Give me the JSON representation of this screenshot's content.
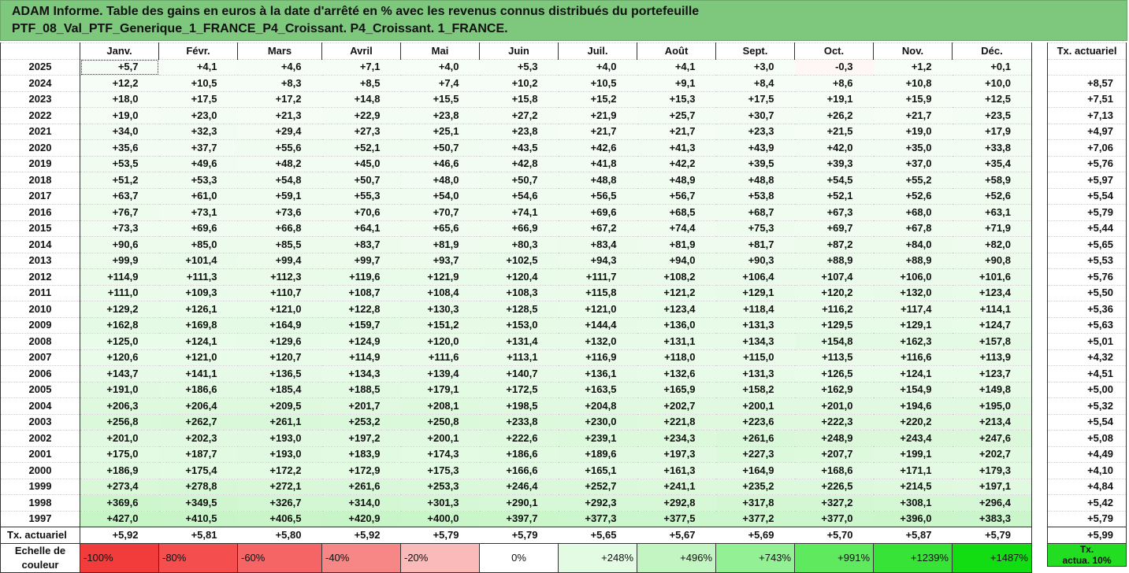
{
  "title": {
    "line1": "ADAM Informe. Table des gains en euros à la date d'arrêté en % avec les revenus connus distribués du portefeuille",
    "line2": "PTF_08_Val_PTF_Generique_1_FRANCE_P4_Croissant. P4_Croissant. 1_FRANCE."
  },
  "months": [
    "Janv.",
    "Févr.",
    "Mars",
    "Avril",
    "Mai",
    "Juin",
    "Juil.",
    "Août",
    "Sept.",
    "Oct.",
    "Nov.",
    "Déc."
  ],
  "rate_header": "Tx. actuariel",
  "rows": [
    {
      "year": "2025",
      "values": [
        "+5,7",
        "+4,1",
        "+4,6",
        "+7,1",
        "+4,0",
        "+5,3",
        "+4,0",
        "+4,1",
        "+3,0",
        "-0,3",
        "+1,2",
        "+0,1"
      ],
      "rate": ""
    },
    {
      "year": "2024",
      "values": [
        "+12,2",
        "+10,5",
        "+8,3",
        "+8,5",
        "+7,4",
        "+10,2",
        "+10,5",
        "+9,1",
        "+8,4",
        "+8,6",
        "+10,8",
        "+10,0"
      ],
      "rate": "+8,57"
    },
    {
      "year": "2023",
      "values": [
        "+18,0",
        "+17,5",
        "+17,2",
        "+14,8",
        "+15,5",
        "+15,8",
        "+15,2",
        "+15,3",
        "+17,5",
        "+19,1",
        "+15,9",
        "+12,5"
      ],
      "rate": "+7,51"
    },
    {
      "year": "2022",
      "values": [
        "+19,0",
        "+23,0",
        "+21,3",
        "+22,9",
        "+23,8",
        "+27,2",
        "+21,9",
        "+25,7",
        "+30,7",
        "+26,2",
        "+21,7",
        "+23,5"
      ],
      "rate": "+7,13"
    },
    {
      "year": "2021",
      "values": [
        "+34,0",
        "+32,3",
        "+29,4",
        "+27,3",
        "+25,1",
        "+23,8",
        "+21,7",
        "+21,7",
        "+23,3",
        "+21,5",
        "+19,0",
        "+17,9"
      ],
      "rate": "+4,97"
    },
    {
      "year": "2020",
      "values": [
        "+35,6",
        "+37,7",
        "+55,6",
        "+52,1",
        "+50,7",
        "+43,5",
        "+42,6",
        "+41,3",
        "+43,9",
        "+42,0",
        "+35,0",
        "+33,8"
      ],
      "rate": "+7,06"
    },
    {
      "year": "2019",
      "values": [
        "+53,5",
        "+49,6",
        "+48,2",
        "+45,0",
        "+46,6",
        "+42,8",
        "+41,8",
        "+42,2",
        "+39,5",
        "+39,3",
        "+37,0",
        "+35,4"
      ],
      "rate": "+5,76"
    },
    {
      "year": "2018",
      "values": [
        "+51,2",
        "+53,3",
        "+54,8",
        "+50,7",
        "+48,0",
        "+50,7",
        "+48,8",
        "+48,9",
        "+48,8",
        "+54,5",
        "+55,2",
        "+58,9"
      ],
      "rate": "+5,97"
    },
    {
      "year": "2017",
      "values": [
        "+63,7",
        "+61,0",
        "+59,1",
        "+55,3",
        "+54,0",
        "+54,6",
        "+56,5",
        "+56,7",
        "+53,8",
        "+52,1",
        "+52,6",
        "+52,6"
      ],
      "rate": "+5,54"
    },
    {
      "year": "2016",
      "values": [
        "+76,7",
        "+73,1",
        "+73,6",
        "+70,6",
        "+70,7",
        "+74,1",
        "+69,6",
        "+68,5",
        "+68,7",
        "+67,3",
        "+68,0",
        "+63,1"
      ],
      "rate": "+5,79"
    },
    {
      "year": "2015",
      "values": [
        "+73,3",
        "+69,6",
        "+66,8",
        "+64,1",
        "+65,6",
        "+66,9",
        "+67,2",
        "+74,4",
        "+75,3",
        "+69,7",
        "+67,8",
        "+71,9"
      ],
      "rate": "+5,44"
    },
    {
      "year": "2014",
      "values": [
        "+90,6",
        "+85,0",
        "+85,5",
        "+83,7",
        "+81,9",
        "+80,3",
        "+83,4",
        "+81,9",
        "+81,7",
        "+87,2",
        "+84,0",
        "+82,0"
      ],
      "rate": "+5,65"
    },
    {
      "year": "2013",
      "values": [
        "+99,9",
        "+101,4",
        "+99,4",
        "+99,7",
        "+93,7",
        "+102,5",
        "+94,3",
        "+94,0",
        "+90,3",
        "+88,9",
        "+88,9",
        "+90,8"
      ],
      "rate": "+5,53"
    },
    {
      "year": "2012",
      "values": [
        "+114,9",
        "+111,3",
        "+112,3",
        "+119,6",
        "+121,9",
        "+120,4",
        "+111,7",
        "+108,2",
        "+106,4",
        "+107,4",
        "+106,0",
        "+101,6"
      ],
      "rate": "+5,76"
    },
    {
      "year": "2011",
      "values": [
        "+111,0",
        "+109,3",
        "+110,7",
        "+108,7",
        "+108,4",
        "+108,3",
        "+115,8",
        "+121,2",
        "+129,1",
        "+120,2",
        "+132,0",
        "+123,4"
      ],
      "rate": "+5,50"
    },
    {
      "year": "2010",
      "values": [
        "+129,2",
        "+126,1",
        "+121,0",
        "+122,8",
        "+130,3",
        "+128,5",
        "+121,0",
        "+123,4",
        "+118,4",
        "+116,2",
        "+117,4",
        "+114,1"
      ],
      "rate": "+5,36"
    },
    {
      "year": "2009",
      "values": [
        "+162,8",
        "+169,8",
        "+164,9",
        "+159,7",
        "+151,2",
        "+153,0",
        "+144,4",
        "+136,0",
        "+131,3",
        "+129,5",
        "+129,1",
        "+124,7"
      ],
      "rate": "+5,63"
    },
    {
      "year": "2008",
      "values": [
        "+125,0",
        "+124,1",
        "+129,6",
        "+124,9",
        "+120,0",
        "+131,4",
        "+132,0",
        "+131,1",
        "+134,3",
        "+154,8",
        "+162,3",
        "+157,8"
      ],
      "rate": "+5,01"
    },
    {
      "year": "2007",
      "values": [
        "+120,6",
        "+121,0",
        "+120,7",
        "+114,9",
        "+111,6",
        "+113,1",
        "+116,9",
        "+118,0",
        "+115,0",
        "+113,5",
        "+116,6",
        "+113,9"
      ],
      "rate": "+4,32"
    },
    {
      "year": "2006",
      "values": [
        "+143,7",
        "+141,1",
        "+136,5",
        "+134,3",
        "+139,4",
        "+140,7",
        "+136,1",
        "+132,6",
        "+131,3",
        "+126,5",
        "+124,1",
        "+123,7"
      ],
      "rate": "+4,51"
    },
    {
      "year": "2005",
      "values": [
        "+191,0",
        "+186,6",
        "+185,4",
        "+188,5",
        "+179,1",
        "+172,5",
        "+163,5",
        "+165,9",
        "+158,2",
        "+162,9",
        "+154,9",
        "+149,8"
      ],
      "rate": "+5,00"
    },
    {
      "year": "2004",
      "values": [
        "+206,3",
        "+206,4",
        "+209,5",
        "+201,7",
        "+208,1",
        "+198,5",
        "+204,8",
        "+202,7",
        "+200,1",
        "+201,0",
        "+194,6",
        "+195,0"
      ],
      "rate": "+5,32"
    },
    {
      "year": "2003",
      "values": [
        "+256,8",
        "+262,7",
        "+261,1",
        "+253,2",
        "+250,8",
        "+233,8",
        "+230,0",
        "+221,8",
        "+223,6",
        "+222,3",
        "+220,2",
        "+213,4"
      ],
      "rate": "+5,54"
    },
    {
      "year": "2002",
      "values": [
        "+201,0",
        "+202,3",
        "+193,0",
        "+197,2",
        "+200,1",
        "+222,6",
        "+239,1",
        "+234,3",
        "+261,6",
        "+248,9",
        "+243,4",
        "+247,6"
      ],
      "rate": "+5,08"
    },
    {
      "year": "2001",
      "values": [
        "+175,0",
        "+187,7",
        "+193,0",
        "+183,9",
        "+174,3",
        "+186,6",
        "+189,6",
        "+197,3",
        "+227,3",
        "+207,7",
        "+199,1",
        "+202,7"
      ],
      "rate": "+4,49"
    },
    {
      "year": "2000",
      "values": [
        "+186,9",
        "+175,4",
        "+172,2",
        "+172,9",
        "+175,3",
        "+166,6",
        "+165,1",
        "+161,3",
        "+164,9",
        "+168,6",
        "+171,1",
        "+179,3"
      ],
      "rate": "+4,10"
    },
    {
      "year": "1999",
      "values": [
        "+273,4",
        "+278,8",
        "+272,1",
        "+261,6",
        "+253,3",
        "+246,4",
        "+252,7",
        "+241,1",
        "+235,2",
        "+226,5",
        "+214,5",
        "+197,1"
      ],
      "rate": "+4,84"
    },
    {
      "year": "1998",
      "values": [
        "+369,6",
        "+349,5",
        "+326,7",
        "+314,0",
        "+301,3",
        "+290,1",
        "+292,3",
        "+292,8",
        "+317,8",
        "+327,2",
        "+308,1",
        "+296,4"
      ],
      "rate": "+5,42"
    },
    {
      "year": "1997",
      "values": [
        "+427,0",
        "+410,5",
        "+406,5",
        "+420,9",
        "+400,0",
        "+397,7",
        "+377,3",
        "+377,5",
        "+377,2",
        "+377,0",
        "+396,0",
        "+383,3"
      ],
      "rate": "+5,79"
    }
  ],
  "tx_row": {
    "label": "Tx. actuariel",
    "values": [
      "+5,92",
      "+5,81",
      "+5,80",
      "+5,92",
      "+5,79",
      "+5,79",
      "+5,65",
      "+5,67",
      "+5,69",
      "+5,70",
      "+5,87",
      "+5,79"
    ],
    "rate": "+5,99"
  },
  "scale": {
    "label_line1": "Echelle de",
    "label_line2": "couleur",
    "items": [
      {
        "label": "-100%",
        "color": "#f23b3b",
        "kind": "neg"
      },
      {
        "label": "-80%",
        "color": "#f44e4e",
        "kind": "neg"
      },
      {
        "label": "-60%",
        "color": "#f56565",
        "kind": "neg"
      },
      {
        "label": "-40%",
        "color": "#f78787",
        "kind": "neg"
      },
      {
        "label": "-20%",
        "color": "#fbbaba",
        "kind": "neg"
      },
      {
        "label": "0%",
        "color": "#ffffff",
        "kind": "zero"
      },
      {
        "label": "+248%",
        "color": "#e3fae3",
        "kind": "pos"
      },
      {
        "label": "+496%",
        "color": "#c2f5c2",
        "kind": "pos"
      },
      {
        "label": "+743%",
        "color": "#94f094",
        "kind": "pos"
      },
      {
        "label": "+991%",
        "color": "#5ee95e",
        "kind": "pos"
      },
      {
        "label": "+1239%",
        "color": "#36e336",
        "kind": "pos"
      },
      {
        "label": "+1487%",
        "color": "#12dc12",
        "kind": "pos"
      }
    ],
    "rate_label_line1": "Tx.",
    "rate_label_line2": "actua. 10%",
    "rate_color": "#22dd22"
  }
}
